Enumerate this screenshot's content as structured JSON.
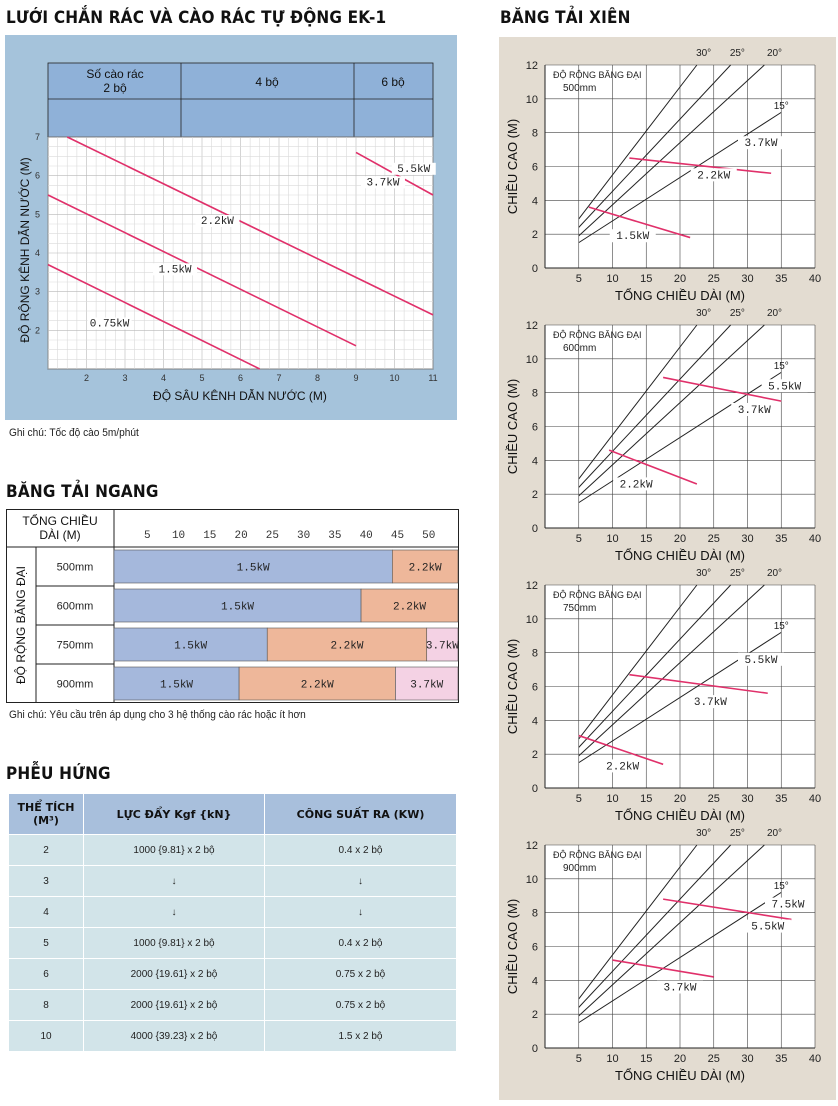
{
  "headings": {
    "ek1": "LƯỚI CHẮN RÁC VÀ CÀO RÁC TỰ ĐỘNG EK-1",
    "incline": "BĂNG TẢI XIÊN",
    "horizontal": "BĂNG TẢI NGANG",
    "hopper": "PHỄU HỨNG"
  },
  "ek1_chart": {
    "header_cells": [
      "Số cào rác\n2 bộ",
      "4 bộ",
      "6 bộ"
    ],
    "xlabel": "ĐỘ SÂU KÊNH DẪN NƯỚC (M)",
    "ylabel": "ĐỘ RỘNG KÊNH DẪN NƯỚC (M)",
    "note": "Ghi chú: Tốc độ cào 5m/phút"
  },
  "horizontal_table": {
    "corner_label": "TỔNG CHIỀU\nDÀI (M)",
    "row_group_label": "ĐỘ RỘNG BĂNG ĐẠI",
    "ticks": [
      "5",
      "10",
      "15",
      "20",
      "25",
      "30",
      "35",
      "40",
      "45",
      "50"
    ],
    "rows": [
      {
        "width": "500mm",
        "segments": [
          {
            "label": "1.5kW",
            "from": 0,
            "to": 44.5,
            "color": "#a5b8dc"
          },
          {
            "label": "2.2kW",
            "from": 44.5,
            "to": 55,
            "color": "#eeb79a"
          }
        ]
      },
      {
        "width": "600mm",
        "segments": [
          {
            "label": "1.5kW",
            "from": 0,
            "to": 39.5,
            "color": "#a5b8dc"
          },
          {
            "label": "2.2kW",
            "from": 39.5,
            "to": 55,
            "color": "#eeb79a"
          }
        ]
      },
      {
        "width": "750mm",
        "segments": [
          {
            "label": "1.5kW",
            "from": 0,
            "to": 24.5,
            "color": "#a5b8dc"
          },
          {
            "label": "2.2kW",
            "from": 24.5,
            "to": 50,
            "color": "#eeb79a"
          },
          {
            "label": "3.7kW",
            "from": 50,
            "to": 55,
            "color": "#f4d2e4"
          }
        ]
      },
      {
        "width": "900mm",
        "segments": [
          {
            "label": "1.5kW",
            "from": 0,
            "to": 20,
            "color": "#a5b8dc"
          },
          {
            "label": "2.2kW",
            "from": 20,
            "to": 45,
            "color": "#eeb79a"
          },
          {
            "label": "3.7kW",
            "from": 45,
            "to": 55,
            "color": "#f4d2e4"
          }
        ]
      }
    ],
    "note": "Ghi chú: Yêu cầu trên áp dụng cho 3 hệ thống cào rác hoặc ít hơn"
  },
  "hopper_table": {
    "headers": [
      "THỂ TÍCH\n(M³)",
      "LỰC ĐẨY Kgf {kN}",
      "CÔNG SUẤT RA (KW)"
    ],
    "rows": [
      [
        "2",
        "1000 {9.81} x 2 bộ",
        "0.4 x 2 bộ"
      ],
      [
        "3",
        "↓",
        "↓"
      ],
      [
        "4",
        "↓",
        "↓"
      ],
      [
        "5",
        "1000 {9.81} x 2 bộ",
        "0.4 x 2 bộ"
      ],
      [
        "6",
        "2000 {19.61} x 2 bộ",
        "0.75 x 2 bộ"
      ],
      [
        "8",
        "2000 {19.61} x 2 bộ",
        "0.75 x 2 bộ"
      ],
      [
        "10",
        "4000 {39.23} x 2 bộ",
        "1.5 x 2 bộ"
      ]
    ]
  },
  "chart_data": [
    {
      "type": "line",
      "title": "LƯỚI CHẮN RÁC VÀ CÀO RÁC TỰ ĐỘNG EK-1",
      "xlabel": "ĐỘ SÂU KÊNH DẪN NƯỚC (M)",
      "ylabel": "ĐỘ RỘNG KÊNH DẪN NƯỚC (M)",
      "xlim": [
        1,
        11
      ],
      "ylim": [
        1,
        7
      ],
      "xticks": [
        "2",
        "3",
        "4",
        "5",
        "6",
        "7",
        "8",
        "9",
        "10",
        "11"
      ],
      "yticks": [
        "2",
        "3",
        "4",
        "5",
        "6",
        "7"
      ],
      "grid": true,
      "series": [
        {
          "name": "0.75kW",
          "x": [
            1,
            6.5
          ],
          "y": [
            3.7,
            1
          ]
        },
        {
          "name": "1.5kW",
          "x": [
            1,
            9
          ],
          "y": [
            5.5,
            1.6
          ]
        },
        {
          "name": "2.2kW",
          "x": [
            1.5,
            11
          ],
          "y": [
            7,
            2.4
          ]
        },
        {
          "name": "3.7kW",
          "x": [
            9,
            11
          ],
          "y": [
            6.6,
            5.5
          ]
        },
        {
          "name": "5.5kW",
          "x": [],
          "y": []
        }
      ]
    },
    {
      "type": "line",
      "ylabel": "CHIỀU CAO (M)",
      "xlabel": "TỔNG CHIỀU DÀI (M)",
      "annotation": "ĐỘ RỘNG BĂNG ĐẠI",
      "belt_width": "500mm",
      "xlim": [
        0,
        40
      ],
      "ylim": [
        0,
        12
      ],
      "xticks": [
        "5",
        "10",
        "15",
        "20",
        "25",
        "30",
        "35",
        "40"
      ],
      "yticks": [
        "0",
        "2",
        "4",
        "6",
        "8",
        "10",
        "12"
      ],
      "angle_labels": [
        "30°",
        "25°",
        "20°",
        "15°"
      ],
      "power_labels": [
        "3.7kW",
        "2.2kW",
        "1.5kW"
      ],
      "series": [
        {
          "name": "30°",
          "x": [
            5,
            22.5
          ],
          "y": [
            2.9,
            12
          ]
        },
        {
          "name": "25°",
          "x": [
            5,
            27.5
          ],
          "y": [
            2.4,
            12
          ]
        },
        {
          "name": "20°",
          "x": [
            5,
            32.5
          ],
          "y": [
            1.9,
            12
          ]
        },
        {
          "name": "15°",
          "x": [
            5,
            35
          ],
          "y": [
            1.5,
            9.2
          ]
        },
        {
          "name": "1.5kW limit",
          "x": [
            6.5,
            21.5
          ],
          "y": [
            3.6,
            1.8
          ]
        },
        {
          "name": "2.2kW limit",
          "x": [
            12.5,
            33.5
          ],
          "y": [
            6.5,
            5.6
          ]
        }
      ]
    },
    {
      "type": "line",
      "ylabel": "CHIỀU CAO (M)",
      "xlabel": "TỔNG CHIỀU DÀI (M)",
      "annotation": "ĐỘ RỘNG BĂNG ĐẠI",
      "belt_width": "600mm",
      "xlim": [
        0,
        40
      ],
      "ylim": [
        0,
        12
      ],
      "xticks": [
        "5",
        "10",
        "15",
        "20",
        "25",
        "30",
        "35",
        "40"
      ],
      "yticks": [
        "0",
        "2",
        "4",
        "6",
        "8",
        "10",
        "12"
      ],
      "angle_labels": [
        "30°",
        "25°",
        "20°",
        "15°"
      ],
      "power_labels": [
        "5.5kW",
        "3.7kW",
        "2.2kW"
      ],
      "series": [
        {
          "name": "30°",
          "x": [
            5,
            22.5
          ],
          "y": [
            2.9,
            12
          ]
        },
        {
          "name": "25°",
          "x": [
            5,
            27.5
          ],
          "y": [
            2.4,
            12
          ]
        },
        {
          "name": "20°",
          "x": [
            5,
            32.5
          ],
          "y": [
            1.9,
            12
          ]
        },
        {
          "name": "15°",
          "x": [
            5,
            35
          ],
          "y": [
            1.5,
            9.2
          ]
        },
        {
          "name": "2.2kW limit",
          "x": [
            9.5,
            22.5
          ],
          "y": [
            4.6,
            2.6
          ]
        },
        {
          "name": "3.7kW limit",
          "x": [
            17.5,
            35
          ],
          "y": [
            8.9,
            7.5
          ]
        }
      ]
    },
    {
      "type": "line",
      "ylabel": "CHIỀU CAO (M)",
      "xlabel": "TỔNG CHIỀU DÀI (M)",
      "annotation": "ĐỘ RỘNG BĂNG ĐẠI",
      "belt_width": "750mm",
      "xlim": [
        0,
        40
      ],
      "ylim": [
        0,
        12
      ],
      "xticks": [
        "5",
        "10",
        "15",
        "20",
        "25",
        "30",
        "35",
        "40"
      ],
      "yticks": [
        "0",
        "2",
        "4",
        "6",
        "8",
        "10",
        "12"
      ],
      "angle_labels": [
        "30°",
        "25°",
        "20°",
        "15°"
      ],
      "power_labels": [
        "5.5kW",
        "3.7kW",
        "2.2kW"
      ],
      "series": [
        {
          "name": "30°",
          "x": [
            5,
            22.5
          ],
          "y": [
            2.9,
            12
          ]
        },
        {
          "name": "25°",
          "x": [
            5,
            27.5
          ],
          "y": [
            2.4,
            12
          ]
        },
        {
          "name": "20°",
          "x": [
            5,
            32.5
          ],
          "y": [
            1.9,
            12
          ]
        },
        {
          "name": "15°",
          "x": [
            5,
            35
          ],
          "y": [
            1.5,
            9.2
          ]
        },
        {
          "name": "2.2kW limit",
          "x": [
            5,
            17.5
          ],
          "y": [
            3.1,
            1.4
          ]
        },
        {
          "name": "3.7kW limit",
          "x": [
            12.5,
            33
          ],
          "y": [
            6.7,
            5.6
          ]
        }
      ]
    },
    {
      "type": "line",
      "ylabel": "CHIỀU CAO (M)",
      "xlabel": "TỔNG CHIỀU DÀI (M)",
      "annotation": "ĐỘ RỘNG BĂNG ĐẠI",
      "belt_width": "900mm",
      "xlim": [
        0,
        40
      ],
      "ylim": [
        0,
        12
      ],
      "xticks": [
        "5",
        "10",
        "15",
        "20",
        "25",
        "30",
        "35",
        "40"
      ],
      "yticks": [
        "0",
        "2",
        "4",
        "6",
        "8",
        "10",
        "12"
      ],
      "angle_labels": [
        "30°",
        "25°",
        "20°",
        "15°"
      ],
      "power_labels": [
        "7.5kW",
        "5.5kW",
        "3.7kW"
      ],
      "series": [
        {
          "name": "30°",
          "x": [
            5,
            22.5
          ],
          "y": [
            2.9,
            12
          ]
        },
        {
          "name": "25°",
          "x": [
            5,
            27.5
          ],
          "y": [
            2.4,
            12
          ]
        },
        {
          "name": "20°",
          "x": [
            5,
            32.5
          ],
          "y": [
            1.9,
            12
          ]
        },
        {
          "name": "15°",
          "x": [
            5,
            35
          ],
          "y": [
            1.5,
            9.2
          ]
        },
        {
          "name": "3.7kW limit",
          "x": [
            10,
            25
          ],
          "y": [
            5.2,
            4.2
          ]
        },
        {
          "name": "5.5kW limit",
          "x": [
            17.5,
            36.5
          ],
          "y": [
            8.8,
            7.6
          ]
        }
      ]
    }
  ]
}
